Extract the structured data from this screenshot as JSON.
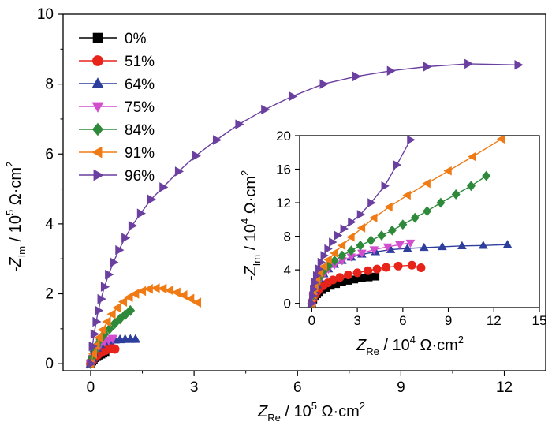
{
  "chart_data": [
    {
      "type": "line",
      "name": "main",
      "xlabel": {
        "prefix": "Z",
        "sub": "Re",
        "mid": " / 10",
        "sup": "5",
        "unit": " Ω·cm",
        "sup2": "2"
      },
      "ylabel": {
        "prefix": "-Z",
        "sub": "Im",
        "mid": " / 10",
        "sup": "5",
        "unit": " Ω·cm",
        "sup2": "2"
      },
      "xlim": [
        -0.8,
        13.2
      ],
      "ylim": [
        -0.2,
        10
      ],
      "xticks": [
        0,
        3,
        6,
        9,
        12
      ],
      "yticks": [
        0,
        2,
        4,
        6,
        8,
        10
      ],
      "xtick_labels": [
        "0",
        "3",
        "6",
        "9",
        "12"
      ],
      "ytick_labels": [
        "0",
        "2",
        "4",
        "6",
        "8",
        "10"
      ],
      "legend_position": "top-left",
      "series": [
        {
          "name": "0%",
          "color": "#000000",
          "marker": "square",
          "x": [
            0,
            0.04,
            0.08,
            0.12,
            0.18,
            0.24,
            0.3,
            0.36,
            0.42
          ],
          "y": [
            0,
            0.07,
            0.12,
            0.17,
            0.2,
            0.24,
            0.27,
            0.3,
            0.32
          ]
        },
        {
          "name": "51%",
          "color": "#e8231a",
          "marker": "circle",
          "x": [
            0,
            0.06,
            0.12,
            0.2,
            0.3,
            0.42,
            0.52,
            0.62,
            0.7
          ],
          "y": [
            0,
            0.1,
            0.18,
            0.25,
            0.32,
            0.38,
            0.42,
            0.44,
            0.42
          ]
        },
        {
          "name": "64%",
          "color": "#2d3e9c",
          "marker": "triangle-up",
          "x": [
            0,
            0.05,
            0.1,
            0.18,
            0.28,
            0.4,
            0.55,
            0.7,
            0.85,
            1.0,
            1.15,
            1.3
          ],
          "y": [
            0,
            0.15,
            0.3,
            0.45,
            0.55,
            0.62,
            0.66,
            0.68,
            0.69,
            0.7,
            0.7,
            0.7
          ]
        },
        {
          "name": "75%",
          "color": "#d24ecf",
          "marker": "triangle-down",
          "x": [
            0,
            0.05,
            0.1,
            0.18,
            0.28,
            0.4,
            0.52,
            0.64
          ],
          "y": [
            0,
            0.15,
            0.3,
            0.45,
            0.56,
            0.64,
            0.68,
            0.72
          ]
        },
        {
          "name": "84%",
          "color": "#2e8a3a",
          "marker": "diamond",
          "x": [
            0,
            0.05,
            0.1,
            0.18,
            0.28,
            0.4,
            0.55,
            0.7,
            0.85,
            1.0,
            1.15
          ],
          "y": [
            0,
            0.18,
            0.35,
            0.52,
            0.7,
            0.85,
            1.0,
            1.15,
            1.28,
            1.4,
            1.52
          ]
        },
        {
          "name": "91%",
          "color": "#f07a14",
          "marker": "triangle-left",
          "x": [
            0,
            0.08,
            0.16,
            0.25,
            0.35,
            0.48,
            0.62,
            0.78,
            0.95,
            1.12,
            1.3,
            1.5,
            1.7,
            1.9,
            2.1,
            2.3,
            2.5,
            2.7,
            2.9,
            3.1
          ],
          "y": [
            0,
            0.28,
            0.52,
            0.75,
            0.97,
            1.2,
            1.42,
            1.6,
            1.77,
            1.9,
            2.0,
            2.08,
            2.14,
            2.16,
            2.15,
            2.1,
            2.04,
            1.96,
            1.86,
            1.75
          ]
        },
        {
          "name": "96%",
          "color": "#6a3fa0",
          "marker": "triangle-right",
          "x": [
            0,
            0.05,
            0.1,
            0.16,
            0.22,
            0.3,
            0.4,
            0.52,
            0.66,
            0.82,
            1.0,
            1.2,
            1.45,
            1.75,
            2.1,
            2.55,
            3.05,
            3.65,
            4.3,
            5.05,
            5.85,
            6.75,
            7.7,
            8.7,
            9.75,
            10.95,
            12.4
          ],
          "y": [
            0,
            0.5,
            0.85,
            1.2,
            1.52,
            1.85,
            2.2,
            2.55,
            2.9,
            3.25,
            3.6,
            3.95,
            4.3,
            4.7,
            5.05,
            5.5,
            5.95,
            6.4,
            6.85,
            7.27,
            7.65,
            8.0,
            8.22,
            8.38,
            8.5,
            8.58,
            8.55
          ]
        }
      ]
    },
    {
      "type": "line",
      "name": "inset",
      "xlabel": {
        "prefix": "Z",
        "sub": "Re",
        "mid": " / 10",
        "sup": "4",
        "unit": " Ω·cm",
        "sup2": "2"
      },
      "ylabel": {
        "prefix": "-Z",
        "sub": "Im",
        "mid": " / 10",
        "sup": "4",
        "unit": " Ω·cm",
        "sup2": "2"
      },
      "xlim": [
        -0.8,
        15
      ],
      "ylim": [
        -0.5,
        20
      ],
      "xticks": [
        0,
        3,
        6,
        9,
        12,
        15
      ],
      "yticks": [
        0,
        4,
        8,
        12,
        16,
        20
      ],
      "xtick_labels": [
        "0",
        "3",
        "6",
        "9",
        "12",
        "15"
      ],
      "ytick_labels": [
        "0",
        "4",
        "8",
        "12",
        "16",
        "20"
      ],
      "series": [
        {
          "name": "0%",
          "color": "#000000",
          "marker": "square",
          "x": [
            0,
            0.1,
            0.2,
            0.35,
            0.5,
            0.7,
            0.95,
            1.25,
            1.6,
            2.0,
            2.4,
            2.8,
            3.3,
            3.75,
            4.2
          ],
          "y": [
            0,
            0.45,
            0.8,
            1.1,
            1.35,
            1.6,
            1.85,
            2.1,
            2.3,
            2.5,
            2.7,
            2.85,
            3.0,
            3.1,
            3.2
          ]
        },
        {
          "name": "51%",
          "color": "#e8231a",
          "marker": "circle",
          "x": [
            0,
            0.1,
            0.2,
            0.35,
            0.5,
            0.75,
            1.05,
            1.4,
            1.85,
            2.4,
            3.0,
            3.7,
            4.3,
            4.9,
            5.7,
            6.6,
            7.2
          ],
          "y": [
            0,
            0.55,
            1.0,
            1.4,
            1.75,
            2.1,
            2.45,
            2.8,
            3.1,
            3.4,
            3.65,
            3.9,
            4.1,
            4.3,
            4.45,
            4.55,
            4.25
          ]
        },
        {
          "name": "64%",
          "color": "#2d3e9c",
          "marker": "triangle-up",
          "x": [
            0,
            0.1,
            0.2,
            0.35,
            0.55,
            0.8,
            1.1,
            1.5,
            2.0,
            2.6,
            3.3,
            4.2,
            5.2,
            6.3,
            7.4,
            8.6,
            9.9,
            11.3,
            12.9
          ],
          "y": [
            0,
            0.8,
            1.5,
            2.2,
            2.9,
            3.5,
            4.1,
            4.65,
            5.1,
            5.5,
            5.85,
            6.15,
            6.4,
            6.55,
            6.65,
            6.75,
            6.85,
            6.9,
            7.0
          ]
        },
        {
          "name": "75%",
          "color": "#d24ecf",
          "marker": "triangle-down",
          "x": [
            0,
            0.1,
            0.2,
            0.35,
            0.55,
            0.8,
            1.1,
            1.5,
            2.0,
            2.6,
            3.3,
            4.1,
            5.0,
            5.8,
            6.5
          ],
          "y": [
            0,
            0.8,
            1.5,
            2.2,
            2.9,
            3.5,
            4.1,
            4.6,
            5.1,
            5.55,
            6.0,
            6.4,
            6.75,
            7.0,
            7.2
          ]
        },
        {
          "name": "84%",
          "color": "#2e8a3a",
          "marker": "diamond",
          "x": [
            0,
            0.1,
            0.2,
            0.35,
            0.55,
            0.8,
            1.1,
            1.5,
            2.0,
            2.6,
            3.2,
            3.9,
            4.6,
            5.3,
            6.0,
            6.8,
            7.6,
            8.5,
            9.5,
            10.5,
            11.5
          ],
          "y": [
            0,
            0.9,
            1.7,
            2.5,
            3.2,
            3.9,
            4.5,
            5.1,
            5.7,
            6.3,
            6.9,
            7.5,
            8.1,
            8.7,
            9.4,
            10.2,
            11.0,
            12.0,
            13.0,
            14.0,
            15.2
          ]
        },
        {
          "name": "91%",
          "color": "#f07a14",
          "marker": "triangle-left",
          "x": [
            0,
            0.1,
            0.2,
            0.35,
            0.55,
            0.8,
            1.1,
            1.5,
            2.0,
            2.6,
            3.3,
            4.1,
            5.1,
            6.3,
            7.6,
            9.0,
            10.6,
            12.5
          ],
          "y": [
            0,
            1.0,
            1.9,
            2.8,
            3.6,
            4.4,
            5.2,
            6.0,
            6.9,
            7.9,
            9.0,
            10.2,
            11.5,
            12.9,
            14.3,
            15.8,
            17.5,
            19.6
          ]
        },
        {
          "name": "96%",
          "color": "#6a3fa0",
          "marker": "triangle-right",
          "x": [
            0,
            0.05,
            0.1,
            0.2,
            0.3,
            0.45,
            0.6,
            0.8,
            1.05,
            1.35,
            1.7,
            2.1,
            2.6,
            3.2,
            3.9,
            4.8,
            5.6,
            6.5
          ],
          "y": [
            0,
            0.9,
            1.7,
            2.5,
            3.3,
            4.1,
            4.9,
            5.7,
            6.5,
            7.3,
            8.1,
            8.9,
            9.7,
            10.6,
            12.0,
            14.0,
            16.5,
            19.5
          ]
        }
      ]
    }
  ]
}
